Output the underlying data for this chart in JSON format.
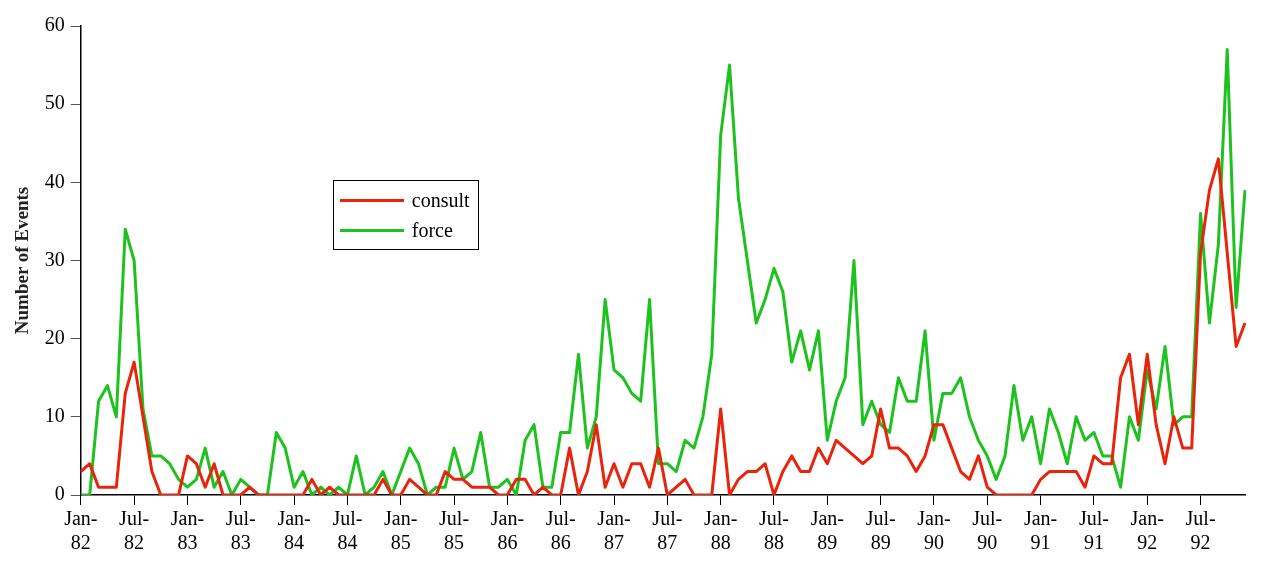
{
  "chart_data": {
    "type": "line",
    "ylabel": "Number of Events",
    "categories": [
      "Jan-82",
      null,
      null,
      null,
      null,
      null,
      "Jul-82",
      null,
      null,
      null,
      null,
      null,
      "Jan-83",
      null,
      null,
      null,
      null,
      null,
      "Jul-83",
      null,
      null,
      null,
      null,
      null,
      "Jan-84",
      null,
      null,
      null,
      null,
      null,
      "Jul-84",
      null,
      null,
      null,
      null,
      null,
      "Jan-85",
      null,
      null,
      null,
      null,
      null,
      "Jul-85",
      null,
      null,
      null,
      null,
      null,
      "Jan-86",
      null,
      null,
      null,
      null,
      null,
      "Jul-86",
      null,
      null,
      null,
      null,
      null,
      "Jan-87",
      null,
      null,
      null,
      null,
      null,
      "Jul-87",
      null,
      null,
      null,
      null,
      null,
      "Jan-88",
      null,
      null,
      null,
      null,
      null,
      "Jul-88",
      null,
      null,
      null,
      null,
      null,
      "Jan-89",
      null,
      null,
      null,
      null,
      null,
      "Jul-89",
      null,
      null,
      null,
      null,
      null,
      "Jan-90",
      null,
      null,
      null,
      null,
      null,
      "Jul-90",
      null,
      null,
      null,
      null,
      null,
      "Jan-91",
      null,
      null,
      null,
      null,
      null,
      "Jul-91",
      null,
      null,
      null,
      null,
      null,
      "Jan-92",
      null,
      null,
      null,
      null,
      null,
      "Jul-92",
      null,
      null,
      null,
      null,
      null
    ],
    "series": [
      {
        "name": "consult",
        "color": "#e8240c",
        "values": [
          3,
          4,
          1,
          1,
          1,
          13,
          17,
          10,
          3,
          0,
          0,
          0,
          5,
          4,
          1,
          4,
          0,
          0,
          0,
          1,
          0,
          0,
          0,
          0,
          0,
          0,
          2,
          0,
          1,
          0,
          0,
          0,
          0,
          0,
          2,
          0,
          0,
          2,
          1,
          0,
          0,
          3,
          2,
          2,
          1,
          1,
          1,
          0,
          0,
          2,
          2,
          0,
          1,
          0,
          0,
          6,
          0,
          3,
          9,
          1,
          4,
          1,
          4,
          4,
          1,
          6,
          0,
          1,
          2,
          0,
          0,
          0,
          11,
          0,
          2,
          3,
          3,
          4,
          0,
          3,
          5,
          3,
          3,
          6,
          4,
          7,
          6,
          5,
          4,
          5,
          11,
          6,
          6,
          5,
          3,
          5,
          9,
          9,
          6,
          3,
          2,
          5,
          1,
          0,
          0,
          0,
          0,
          0,
          2,
          3,
          3,
          3,
          3,
          1,
          5,
          4,
          4,
          15,
          18,
          9,
          18,
          9,
          4,
          10,
          6,
          6,
          31,
          39,
          43,
          31,
          19,
          22
        ]
      },
      {
        "name": "force",
        "color": "#1ec21e",
        "values": [
          0,
          0,
          12,
          14,
          10,
          34,
          30,
          11,
          5,
          5,
          4,
          2,
          1,
          2,
          6,
          1,
          3,
          0,
          2,
          1,
          0,
          0,
          8,
          6,
          1,
          3,
          0,
          1,
          0,
          1,
          0,
          5,
          0,
          1,
          3,
          0,
          3,
          6,
          4,
          0,
          1,
          1,
          6,
          2,
          3,
          8,
          1,
          1,
          2,
          0,
          7,
          9,
          1,
          1,
          8,
          8,
          18,
          6,
          10,
          25,
          16,
          15,
          13,
          12,
          25,
          4,
          4,
          3,
          7,
          6,
          10,
          18,
          46,
          55,
          38,
          30,
          22,
          25,
          29,
          26,
          17,
          21,
          16,
          21,
          7,
          12,
          15,
          30,
          9,
          12,
          9,
          8,
          15,
          12,
          12,
          21,
          7,
          13,
          13,
          15,
          10,
          7,
          5,
          2,
          5,
          14,
          7,
          10,
          4,
          11,
          8,
          4,
          10,
          7,
          8,
          5,
          5,
          1,
          10,
          7,
          16,
          11,
          19,
          9,
          10,
          10,
          36,
          22,
          32,
          57,
          24,
          39
        ]
      }
    ],
    "ylim": [
      0,
      60
    ],
    "yticks": [
      0,
      10,
      20,
      30,
      40,
      50,
      60
    ],
    "grid": false,
    "legend": "top left",
    "marker": "none",
    "line_style": "solid"
  }
}
